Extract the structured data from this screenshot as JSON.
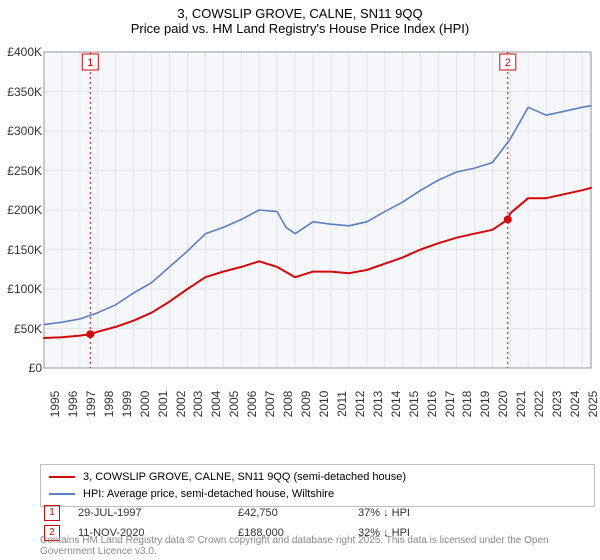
{
  "title_line1": "3, COWSLIP GROVE, CALNE, SN11 9QQ",
  "title_line2": "Price paid vs. HM Land Registry's House Price Index (HPI)",
  "chart": {
    "type": "line",
    "background_color": "#ffffff",
    "plot_bg_color": "#f6f7fa",
    "grid_color": "#e3e5ea",
    "axis_color": "#888888",
    "label_color": "#333333",
    "title_fontsize": 13,
    "tick_fontsize": 12,
    "x_start": 1995,
    "x_end": 2025.5,
    "x_ticks": [
      1995,
      1996,
      1997,
      1998,
      1999,
      2000,
      2001,
      2002,
      2003,
      2004,
      2005,
      2006,
      2007,
      2008,
      2009,
      2010,
      2011,
      2012,
      2013,
      2014,
      2015,
      2016,
      2017,
      2018,
      2019,
      2020,
      2021,
      2022,
      2023,
      2024,
      2025
    ],
    "y_min": 0,
    "y_max": 400000,
    "y_ticks": [
      0,
      50000,
      100000,
      150000,
      200000,
      250000,
      300000,
      350000,
      400000
    ],
    "y_tick_labels": [
      "£0",
      "£50K",
      "£100K",
      "£150K",
      "£200K",
      "£250K",
      "£300K",
      "£350K",
      "£400K"
    ],
    "series": [
      {
        "name": "property",
        "label": "3, COWSLIP GROVE, CALNE, SN11 9QQ (semi-detached house)",
        "color": "#d30808",
        "line_width": 2,
        "data_x": [
          1995,
          1996,
          1997,
          1997.58,
          1998,
          1999,
          2000,
          2001,
          2002,
          2003,
          2004,
          2005,
          2006,
          2007,
          2008,
          2009,
          2010,
          2011,
          2012,
          2013,
          2014,
          2015,
          2016,
          2017,
          2018,
          2019,
          2020,
          2020.86,
          2021,
          2022,
          2023,
          2024,
          2025,
          2025.5
        ],
        "data_y": [
          38000,
          39000,
          41000,
          42750,
          46000,
          52000,
          60000,
          70000,
          84000,
          100000,
          115000,
          122000,
          128000,
          135000,
          128000,
          115000,
          122000,
          122000,
          120000,
          124000,
          132000,
          140000,
          150000,
          158000,
          165000,
          170000,
          175000,
          188000,
          196000,
          215000,
          215000,
          220000,
          225000,
          228000
        ]
      },
      {
        "name": "hpi",
        "label": "HPI: Average price, semi-detached house, Wiltshire",
        "color": "#5a7fc4",
        "line_width": 1.6,
        "data_x": [
          1995,
          1996,
          1997,
          1998,
          1999,
          2000,
          2001,
          2002,
          2003,
          2004,
          2005,
          2006,
          2007,
          2008,
          2008.5,
          2009,
          2010,
          2011,
          2012,
          2013,
          2014,
          2015,
          2016,
          2017,
          2018,
          2019,
          2020,
          2021,
          2022,
          2023,
          2024,
          2025,
          2025.5
        ],
        "data_y": [
          55000,
          58000,
          62000,
          70000,
          80000,
          95000,
          108000,
          128000,
          148000,
          170000,
          178000,
          188000,
          200000,
          198000,
          178000,
          170000,
          185000,
          182000,
          180000,
          185000,
          198000,
          210000,
          225000,
          238000,
          248000,
          253000,
          260000,
          290000,
          330000,
          320000,
          325000,
          330000,
          332000
        ]
      }
    ],
    "markers": [
      {
        "n": 1,
        "x": 1997.58,
        "y": 42750,
        "date": "29-JUL-1997",
        "price": "£42,750",
        "pct": "37% ↓ HPI",
        "color": "#d30808"
      },
      {
        "n": 2,
        "x": 2020.86,
        "y": 188000,
        "date": "11-NOV-2020",
        "price": "£188,000",
        "pct": "32% ↓ HPI",
        "color": "#d30808"
      }
    ]
  },
  "legend_items": [
    {
      "swatch": "#d30808",
      "text": "3, COWSLIP GROVE, CALNE, SN11 9QQ (semi-detached house)"
    },
    {
      "swatch": "#5a7fc4",
      "text": "HPI: Average price, semi-detached house, Wiltshire"
    }
  ],
  "footer_text": "Contains HM Land Registry data © Crown copyright and database right 2025. This data is licensed under the Open Government Licence v3.0."
}
